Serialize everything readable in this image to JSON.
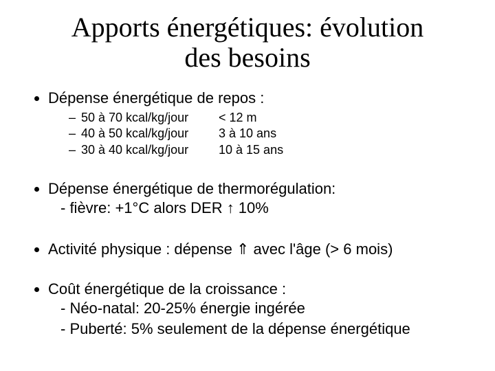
{
  "title_line1": "Apports énergétiques: évolution",
  "title_line2": "des besoins",
  "bullets": {
    "b1": {
      "text": "Dépense énergétique de repos :",
      "sub": [
        {
          "a": "50 à 70 kcal/kg/jour",
          "b": "< 12 m"
        },
        {
          "a": "40 à 50 kcal/kg/jour",
          "b": "3 à 10 ans"
        },
        {
          "a": "30 à 40 kcal/kg/jour",
          "b": "10 à 15 ans"
        }
      ]
    },
    "b2": {
      "text": "Dépense énergétique de thermorégulation:",
      "line2": "- fièvre: +1°C  alors DER ↑ 10%"
    },
    "b3": {
      "text": "Activité  physique : dépense ⇑ avec l'âge (> 6 mois)"
    },
    "b4": {
      "text": "Coût énergétique de la croissance :",
      "line2": "- Néo-natal: 20-25% énergie ingérée",
      "line3": "- Puberté: 5% seulement de la dépense énergétique"
    }
  }
}
